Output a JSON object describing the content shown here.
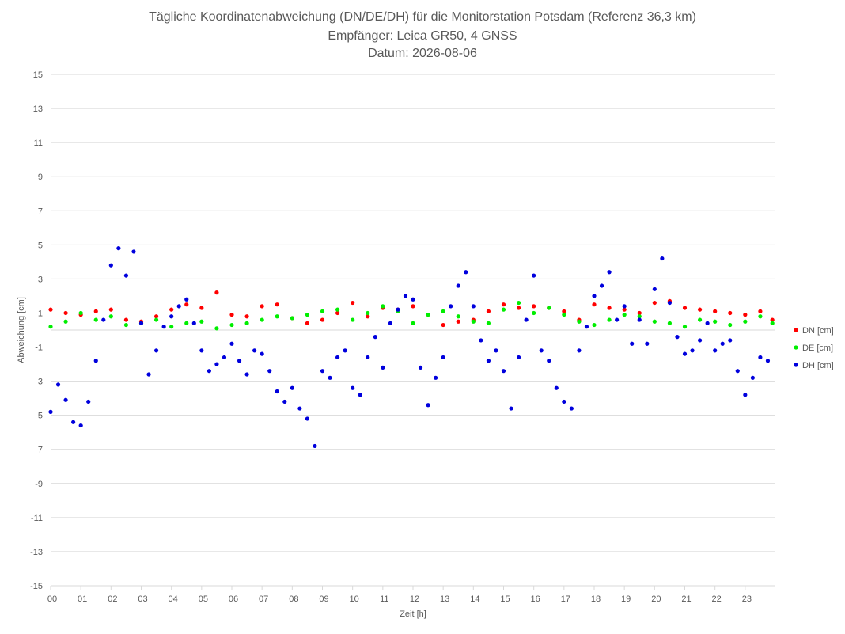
{
  "chart_data": {
    "type": "scatter",
    "title": "Tägliche Koordinatenabweichung (DN/DE/DH) für die Monitorstation Potsdam (Referenz 36,3 km)",
    "subtitle1": "Empfänger: Leica GR50, 4 GNSS",
    "subtitle2": "Datum: 2026-08-06",
    "xlabel": "Zeit [h]",
    "ylabel": "Abweichung [cm]",
    "xlim": [
      0,
      24
    ],
    "ylim": [
      -15,
      15
    ],
    "yticks": [
      "-15",
      "-13",
      "-11",
      "-9",
      "-7",
      "-5",
      "-3",
      "-1",
      "1",
      "3",
      "5",
      "7",
      "9",
      "11",
      "13",
      "15"
    ],
    "xticks": [
      "00",
      "01",
      "02",
      "03",
      "04",
      "05",
      "06",
      "07",
      "08",
      "09",
      "10",
      "11",
      "12",
      "13",
      "14",
      "15",
      "16",
      "17",
      "18",
      "19",
      "20",
      "21",
      "22",
      "23"
    ],
    "grid": true,
    "legend_position": "right",
    "series": [
      {
        "name": "DN [cm]",
        "color": "#ff0000",
        "x": [
          0,
          0.5,
          1,
          1.5,
          2,
          2.5,
          3,
          3.5,
          4,
          4.5,
          5,
          5.5,
          6,
          6.5,
          7,
          7.5,
          8,
          8.5,
          9,
          9.5,
          10,
          10.5,
          11,
          11.5,
          12,
          12.5,
          13,
          13.5,
          14,
          14.5,
          15,
          15.5,
          16,
          16.5,
          17,
          17.5,
          18,
          18.5,
          19,
          19.5,
          20,
          20.5,
          21,
          21.5,
          22,
          22.5,
          23,
          23.5,
          23.9
        ],
        "y": [
          1.2,
          1.0,
          0.9,
          1.1,
          1.2,
          0.6,
          0.5,
          0.8,
          1.2,
          1.5,
          1.3,
          2.2,
          0.9,
          0.8,
          1.4,
          1.5,
          0.7,
          0.4,
          0.6,
          1.0,
          1.6,
          0.8,
          1.3,
          1.2,
          1.4,
          0.9,
          0.3,
          0.5,
          0.6,
          1.1,
          1.5,
          1.3,
          1.4,
          1.3,
          1.1,
          0.6,
          1.5,
          1.3,
          1.2,
          1.0,
          1.6,
          1.7,
          1.3,
          1.2,
          1.1,
          1.0,
          0.9,
          1.1,
          0.6
        ]
      },
      {
        "name": "DE [cm]",
        "color": "#00ee00",
        "x": [
          0,
          0.5,
          1,
          1.5,
          2,
          2.5,
          3,
          3.5,
          4,
          4.5,
          5,
          5.5,
          6,
          6.5,
          7,
          7.5,
          8,
          8.5,
          9,
          9.5,
          10,
          10.5,
          11,
          11.5,
          12,
          12.5,
          13,
          13.5,
          14,
          14.5,
          15,
          15.5,
          16,
          16.5,
          17,
          17.5,
          18,
          18.5,
          19,
          19.5,
          20,
          20.5,
          21,
          21.5,
          22,
          22.5,
          23,
          23.5,
          23.9
        ],
        "y": [
          0.2,
          0.5,
          1.0,
          0.6,
          0.8,
          0.3,
          0.4,
          0.6,
          0.2,
          0.4,
          0.5,
          0.1,
          0.3,
          0.4,
          0.6,
          0.8,
          0.7,
          0.9,
          1.1,
          1.2,
          0.6,
          1.0,
          1.4,
          1.1,
          0.4,
          0.9,
          1.1,
          0.8,
          0.5,
          0.4,
          1.2,
          1.6,
          1.0,
          1.3,
          0.9,
          0.5,
          0.3,
          0.6,
          0.9,
          0.8,
          0.5,
          0.4,
          0.2,
          0.6,
          0.5,
          0.3,
          0.5,
          0.8,
          0.4
        ]
      },
      {
        "name": "DH [cm]",
        "color": "#0000dd",
        "x": [
          0,
          0.25,
          0.5,
          0.75,
          1,
          1.25,
          1.5,
          1.75,
          2,
          2.25,
          2.5,
          2.75,
          3,
          3.25,
          3.5,
          3.75,
          4,
          4.25,
          4.5,
          4.75,
          5,
          5.25,
          5.5,
          5.75,
          6,
          6.25,
          6.5,
          6.75,
          7,
          7.25,
          7.5,
          7.75,
          8,
          8.25,
          8.5,
          8.75,
          9,
          9.25,
          9.5,
          9.75,
          10,
          10.25,
          10.5,
          10.75,
          11,
          11.25,
          11.5,
          11.75,
          12,
          12.25,
          12.5,
          12.75,
          13,
          13.25,
          13.5,
          13.75,
          14,
          14.25,
          14.5,
          14.75,
          15,
          15.25,
          15.5,
          15.75,
          16,
          16.25,
          16.5,
          16.75,
          17,
          17.25,
          17.5,
          17.75,
          18,
          18.25,
          18.5,
          18.75,
          19,
          19.25,
          19.5,
          19.75,
          20,
          20.25,
          20.5,
          20.75,
          21,
          21.25,
          21.5,
          21.75,
          22,
          22.25,
          22.5,
          22.75,
          23,
          23.25,
          23.5,
          23.75
        ],
        "y": [
          -4.8,
          -3.2,
          -4.1,
          -5.4,
          -5.6,
          -4.2,
          -1.8,
          0.6,
          3.8,
          4.8,
          3.2,
          4.6,
          0.4,
          -2.6,
          -1.2,
          0.2,
          0.8,
          1.4,
          1.8,
          0.4,
          -1.2,
          -2.4,
          -2.0,
          -1.6,
          -0.8,
          -1.8,
          -2.6,
          -1.2,
          -1.4,
          -2.4,
          -3.6,
          -4.2,
          -3.4,
          -4.6,
          -5.2,
          -6.8,
          -2.4,
          -2.8,
          -1.6,
          -1.2,
          -3.4,
          -3.8,
          -1.6,
          -0.4,
          -2.2,
          0.4,
          1.2,
          2.0,
          1.8,
          -2.2,
          -4.4,
          -2.8,
          -1.6,
          1.4,
          2.6,
          3.4,
          1.4,
          -0.6,
          -1.8,
          -1.2,
          -2.4,
          -4.6,
          -1.6,
          0.6,
          3.2,
          -1.2,
          -1.8,
          -3.4,
          -4.2,
          -4.6,
          -1.2,
          0.2,
          2.0,
          2.6,
          3.4,
          0.6,
          1.4,
          -0.8,
          0.6,
          -0.8,
          2.4,
          4.2,
          1.6,
          -0.4,
          -1.4,
          -1.2,
          -0.6,
          0.4,
          -1.2,
          -0.8,
          -0.6,
          -2.4,
          -3.8,
          -2.8,
          -1.6,
          -1.8
        ]
      }
    ]
  }
}
